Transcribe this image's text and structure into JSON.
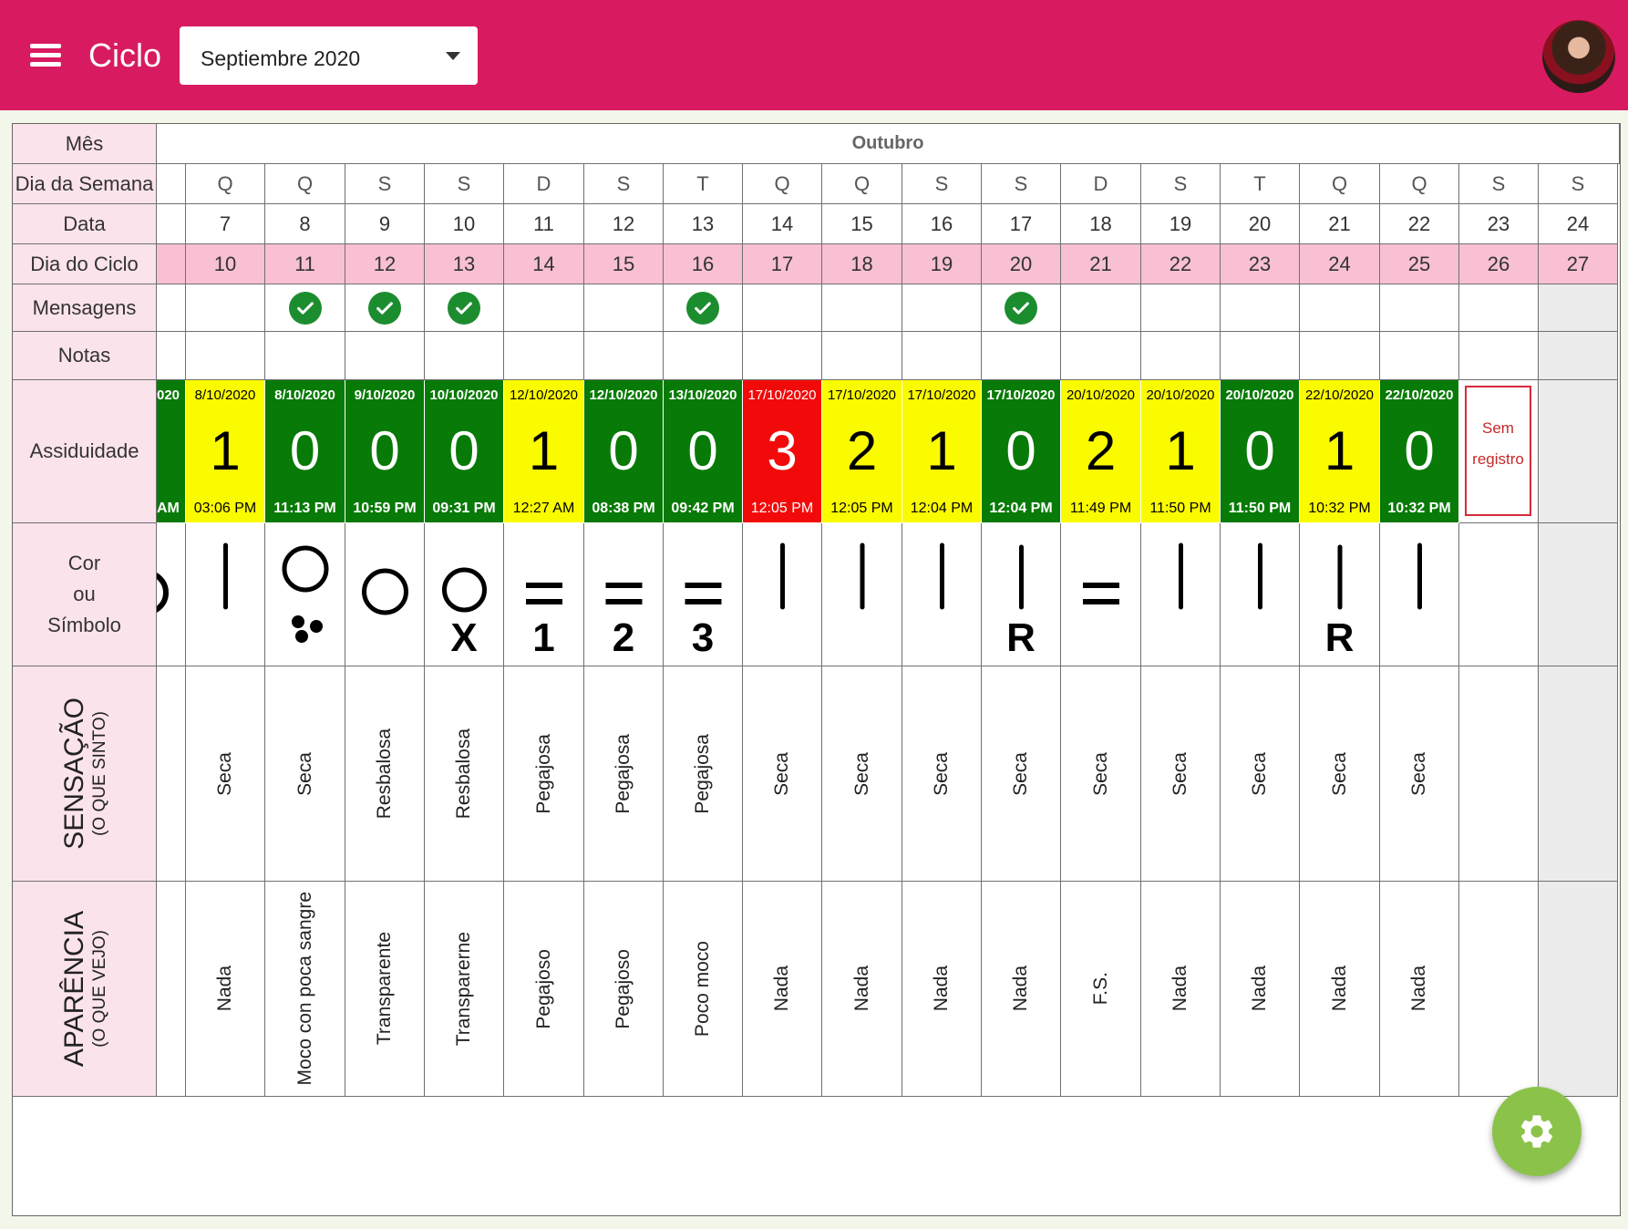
{
  "header": {
    "title": "Ciclo",
    "month_select": "Septiembre 2020"
  },
  "labels": {
    "mes": "Mês",
    "dia_semana": "Dia da Semana",
    "data": "Data",
    "dia_ciclo": "Dia do Ciclo",
    "mensagens": "Mensagens",
    "notas": "Notas",
    "assiduidade": "Assiduidade",
    "cor": "Cor",
    "ou": "ou",
    "simbolo": "Símbolo",
    "sensacao": "SENSAÇÃO",
    "sensacao_sub": "(O QUE SINTO)",
    "aparencia": "APARÊNCIA",
    "aparencia_sub": "(O QUE VEJO)"
  },
  "month_name": "Outubro",
  "partial": {
    "att_date": "020",
    "att_time": "AM",
    "color": "green"
  },
  "days": [
    {
      "dow": "Q",
      "date": "7",
      "cycle": "10",
      "msg": false,
      "att_date": "8/10/2020",
      "att_num": "1",
      "att_time": "03:06 PM",
      "color": "yellow",
      "symbol": "bar",
      "sens": "Seca",
      "apar": "Nada"
    },
    {
      "dow": "Q",
      "date": "8",
      "cycle": "11",
      "msg": true,
      "att_date": "8/10/2020",
      "att_num": "0",
      "att_time": "11:13 PM",
      "color": "green",
      "symbol": "circle-dots",
      "sens": "Seca",
      "apar": "Moco con poca sangre"
    },
    {
      "dow": "S",
      "date": "9",
      "cycle": "12",
      "msg": true,
      "att_date": "9/10/2020",
      "att_num": "0",
      "att_time": "10:59 PM",
      "color": "green",
      "symbol": "circle",
      "sens": "Resbalosa",
      "apar": "Transparente"
    },
    {
      "dow": "S",
      "date": "10",
      "cycle": "13",
      "msg": true,
      "att_date": "10/10/2020",
      "att_num": "0",
      "att_time": "09:31 PM",
      "color": "green",
      "symbol": "circle",
      "symbol_text": "X",
      "sens": "Resbalosa",
      "apar": "Transparerne"
    },
    {
      "dow": "D",
      "date": "11",
      "cycle": "14",
      "msg": false,
      "att_date": "12/10/2020",
      "att_num": "1",
      "att_time": "12:27 AM",
      "color": "yellow",
      "symbol": "equals",
      "symbol_text": "1",
      "sens": "Pegajosa",
      "apar": "Pegajoso"
    },
    {
      "dow": "S",
      "date": "12",
      "cycle": "15",
      "msg": false,
      "att_date": "12/10/2020",
      "att_num": "0",
      "att_time": "08:38 PM",
      "color": "green",
      "symbol": "equals",
      "symbol_text": "2",
      "sens": "Pegajosa",
      "apar": "Pegajoso"
    },
    {
      "dow": "T",
      "date": "13",
      "cycle": "16",
      "msg": true,
      "att_date": "13/10/2020",
      "att_num": "0",
      "att_time": "09:42 PM",
      "color": "green",
      "symbol": "equals",
      "symbol_text": "3",
      "sens": "Pegajosa",
      "apar": "Poco moco"
    },
    {
      "dow": "Q",
      "date": "14",
      "cycle": "17",
      "msg": false,
      "att_date": "17/10/2020",
      "att_num": "3",
      "att_time": "12:05 PM",
      "color": "red",
      "symbol": "bar",
      "sens": "Seca",
      "apar": "Nada"
    },
    {
      "dow": "Q",
      "date": "15",
      "cycle": "18",
      "msg": false,
      "att_date": "17/10/2020",
      "att_num": "2",
      "att_time": "12:05 PM",
      "color": "yellow",
      "symbol": "bar",
      "sens": "Seca",
      "apar": "Nada"
    },
    {
      "dow": "S",
      "date": "16",
      "cycle": "19",
      "msg": false,
      "att_date": "17/10/2020",
      "att_num": "1",
      "att_time": "12:04 PM",
      "color": "yellow",
      "symbol": "bar",
      "sens": "Seca",
      "apar": "Nada"
    },
    {
      "dow": "S",
      "date": "17",
      "cycle": "20",
      "msg": true,
      "att_date": "17/10/2020",
      "att_num": "0",
      "att_time": "12:04 PM",
      "color": "green",
      "symbol": "bar",
      "symbol_text": "R",
      "sens": "Seca",
      "apar": "Nada"
    },
    {
      "dow": "D",
      "date": "18",
      "cycle": "21",
      "msg": false,
      "att_date": "20/10/2020",
      "att_num": "2",
      "att_time": "11:49 PM",
      "color": "yellow",
      "symbol": "equals",
      "sens": "Seca",
      "apar": "F.S."
    },
    {
      "dow": "S",
      "date": "19",
      "cycle": "22",
      "msg": false,
      "att_date": "20/10/2020",
      "att_num": "1",
      "att_time": "11:50 PM",
      "color": "yellow",
      "symbol": "bar",
      "sens": "Seca",
      "apar": "Nada"
    },
    {
      "dow": "T",
      "date": "20",
      "cycle": "23",
      "msg": false,
      "att_date": "20/10/2020",
      "att_num": "0",
      "att_time": "11:50 PM",
      "color": "green",
      "symbol": "bar",
      "sens": "Seca",
      "apar": "Nada"
    },
    {
      "dow": "Q",
      "date": "21",
      "cycle": "24",
      "msg": false,
      "att_date": "22/10/2020",
      "att_num": "1",
      "att_time": "10:32 PM",
      "color": "yellow",
      "symbol": "bar",
      "symbol_text": "R",
      "sens": "Seca",
      "apar": "Nada"
    },
    {
      "dow": "Q",
      "date": "22",
      "cycle": "25",
      "msg": false,
      "att_date": "22/10/2020",
      "att_num": "0",
      "att_time": "10:32 PM",
      "color": "green",
      "symbol": "bar",
      "sens": "Seca",
      "apar": "Nada"
    },
    {
      "dow": "S",
      "date": "23",
      "cycle": "26",
      "msg": false,
      "no_record": "Sem registro",
      "sens": "",
      "apar": ""
    },
    {
      "dow": "S",
      "date": "24",
      "cycle": "27",
      "msg": false,
      "grayed": true,
      "sens": "",
      "apar": ""
    }
  ],
  "icons": {
    "menu": "menu-icon",
    "avatar": "user-avatar",
    "check": "check-circle-icon",
    "settings": "gear-icon"
  },
  "colors": {
    "appbar": "#d81b60",
    "label_bg": "#fbe3ec",
    "cycle_bg": "#f8c0d2",
    "green": "#087a07",
    "yellow": "#fbfb00",
    "red": "#f20a0a",
    "fab": "#8bc34a"
  }
}
